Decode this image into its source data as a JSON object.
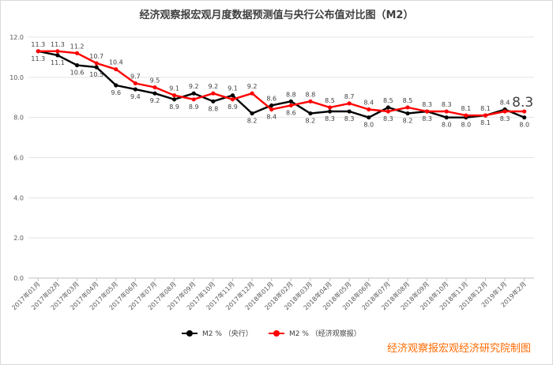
{
  "chart_data": {
    "type": "line",
    "title": "经济观察报宏观月度数据预测值与央行公布值对比图（M2）",
    "categories": [
      "2017年01月",
      "2017年02月",
      "2017年03月",
      "2017年04月",
      "2017年05月",
      "2017年06月",
      "2017年07月",
      "2017年08月",
      "2017年09月",
      "2017年10月",
      "2017年11月",
      "2017年12月",
      "2018年01月",
      "2018年02月",
      "2018年03月",
      "2018年04月",
      "2018年05月",
      "2018年06月",
      "2018年07月",
      "2018年08月",
      "2018年09月",
      "2018年10月",
      "2018年11月",
      "2018年12月",
      "2019年1月",
      "2019年2月"
    ],
    "series": [
      {
        "name": "M2   %     （央行）",
        "color": "#000000",
        "values": [
          11.3,
          11.1,
          10.6,
          10.5,
          9.6,
          9.4,
          9.2,
          8.9,
          9.2,
          8.8,
          9.1,
          8.2,
          8.6,
          8.8,
          8.2,
          8.3,
          8.3,
          8.0,
          8.5,
          8.2,
          8.3,
          8.0,
          8.0,
          8.1,
          8.4,
          8.0
        ]
      },
      {
        "name": "M2   %     （经济观察报）",
        "color": "#ff0000",
        "values": [
          11.3,
          11.3,
          11.2,
          10.7,
          10.4,
          9.7,
          9.5,
          9.1,
          8.9,
          9.2,
          8.9,
          9.2,
          8.4,
          8.6,
          8.8,
          8.5,
          8.7,
          8.4,
          8.3,
          8.5,
          8.3,
          8.3,
          8.1,
          8.1,
          8.3,
          8.3
        ]
      }
    ],
    "ylim": [
      0,
      12
    ],
    "yticks": [
      "0.0",
      "2.0",
      "4.0",
      "6.0",
      "8.0",
      "10.0",
      "12.0"
    ],
    "grid": true,
    "legend": "bottom"
  },
  "watermark": "经济观察报宏观经济研究院制图"
}
